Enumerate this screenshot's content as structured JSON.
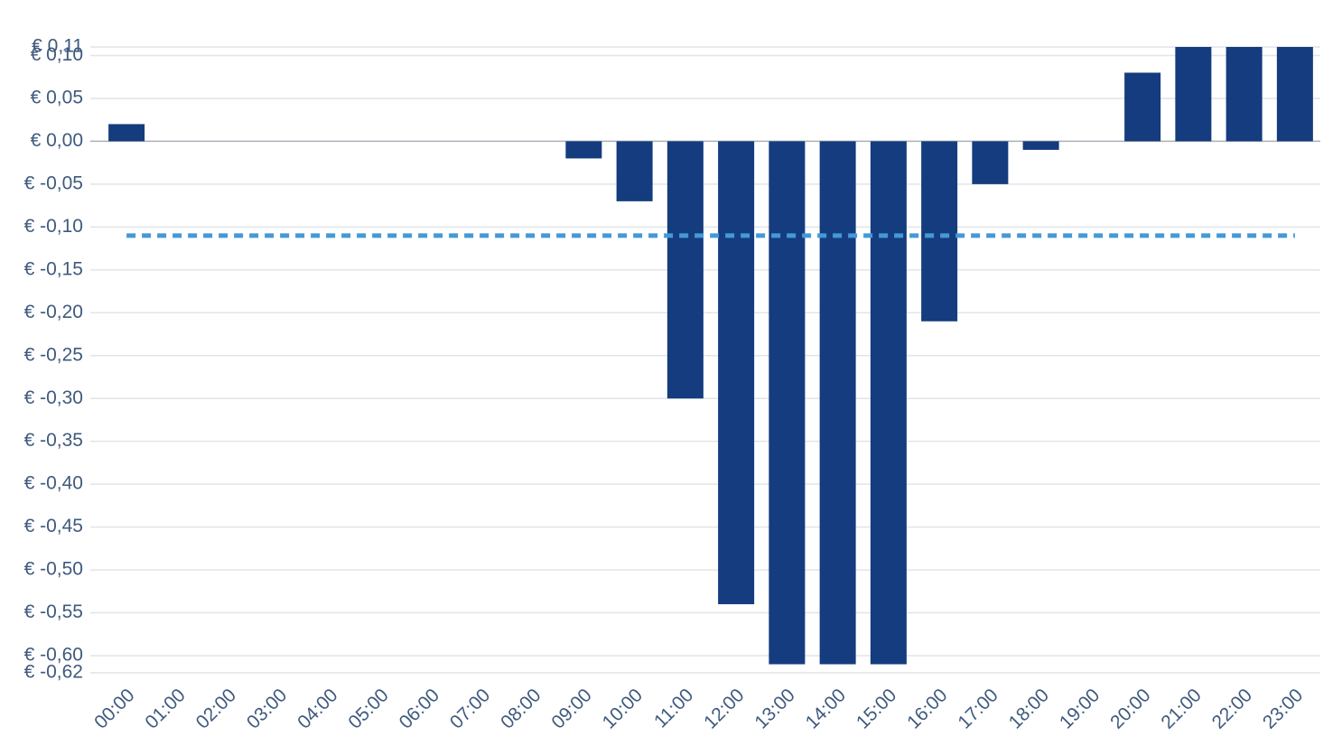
{
  "chart_data": {
    "type": "bar",
    "categories": [
      "00:00",
      "01:00",
      "02:00",
      "03:00",
      "04:00",
      "05:00",
      "06:00",
      "07:00",
      "08:00",
      "09:00",
      "10:00",
      "11:00",
      "12:00",
      "13:00",
      "14:00",
      "15:00",
      "16:00",
      "17:00",
      "18:00",
      "19:00",
      "20:00",
      "21:00",
      "22:00",
      "23:00"
    ],
    "series": [
      {
        "color": "#143c7e",
        "values": [
          0.02,
          0,
          0,
          0,
          0,
          0,
          0,
          0,
          0,
          -0.02,
          -0.07,
          -0.3,
          -0.54,
          -0.61,
          -0.61,
          -0.61,
          -0.21,
          -0.05,
          -0.01,
          0,
          0.08,
          0.11,
          0.11,
          0.11
        ]
      },
      {
        "type": "line",
        "dashed": true,
        "color": "#4499d6",
        "values": [
          -0.11,
          -0.11,
          -0.11,
          -0.11,
          -0.11,
          -0.11,
          -0.11,
          -0.11,
          -0.11,
          -0.11,
          -0.11,
          -0.11,
          -0.11,
          -0.11,
          -0.11,
          -0.11,
          -0.11,
          -0.11,
          -0.11,
          -0.11,
          -0.11,
          -0.11,
          -0.11,
          -0.11
        ]
      }
    ],
    "ylim": [
      -0.62,
      0.11
    ],
    "yticks": [
      {
        "value": 0.11,
        "label": "€ 0,11"
      },
      {
        "value": 0.1,
        "label": "€ 0,10"
      },
      {
        "value": 0.05,
        "label": "€ 0,05"
      },
      {
        "value": 0,
        "label": "€ 0,00"
      },
      {
        "value": -0.05,
        "label": "€ -0,05"
      },
      {
        "value": -0.1,
        "label": "€ -0,10"
      },
      {
        "value": -0.15,
        "label": "€ -0,15"
      },
      {
        "value": -0.2,
        "label": "€ -0,20"
      },
      {
        "value": -0.25,
        "label": "€ -0,25"
      },
      {
        "value": -0.3,
        "label": "€ -0,30"
      },
      {
        "value": -0.35,
        "label": "€ -0,35"
      },
      {
        "value": -0.4,
        "label": "€ -0,40"
      },
      {
        "value": -0.45,
        "label": "€ -0,45"
      },
      {
        "value": -0.5,
        "label": "€ -0,50"
      },
      {
        "value": -0.55,
        "label": "€ -0,55"
      },
      {
        "value": -0.6,
        "label": "€ -0,60"
      },
      {
        "value": -0.62,
        "label": "€ -0,62"
      }
    ],
    "grid": true
  }
}
